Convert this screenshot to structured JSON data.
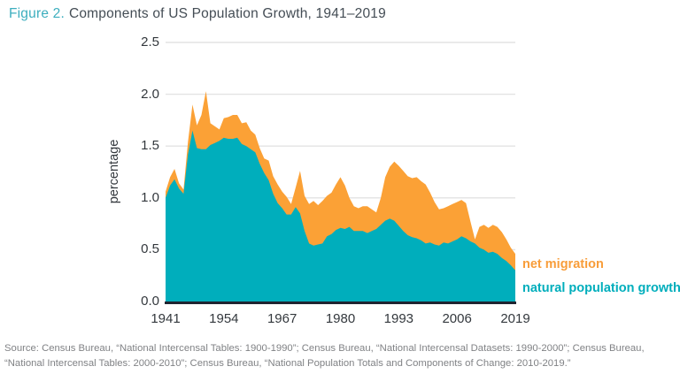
{
  "title": {
    "figure_label": "Figure 2.",
    "text": "Components of US Population Growth, 1941–2019"
  },
  "legend": {
    "migration_label": "net migration",
    "natural_label": "natural population growth"
  },
  "source": {
    "line1": "Source: Census Bureau, “National Intercensal Tables: 1900-1990”; Census Bureau, “National Intercensal Datasets: 1990-2000”; Census Bureau,",
    "line2": "“National Intercensal Tables: 2000-2010”; Census Bureau, “National Population Totals and Components of Change: 2010-2019.”"
  },
  "colors": {
    "natural_area": "#00AEBC",
    "migration_area": "#FBA136",
    "legend_natural_text": "#00AEBC",
    "legend_migration_text": "#F89D3A",
    "title_accent": "#3CAEBE",
    "title_text": "#444D55",
    "grid": "#E3E3E3",
    "baseline": "#1F2430",
    "tick_text": "#33383D",
    "source_text": "#808285"
  },
  "chart_data": {
    "type": "area",
    "stacked": true,
    "title": "Components of US Population Growth, 1941–2019",
    "xlabel": "",
    "ylabel": "percentage",
    "grid": "horizontal gridlines at each y tick",
    "legend_position": "right of plot, stacked vertically",
    "xlim": [
      1941,
      2019
    ],
    "ylim": [
      0,
      2.5
    ],
    "x_ticks": [
      1941,
      1954,
      1967,
      1980,
      1993,
      2006,
      2019
    ],
    "y_tick_labels": [
      "0.0",
      "0.5",
      "1.0",
      "1.5",
      "2.0",
      "2.5"
    ],
    "x": [
      1941,
      1942,
      1943,
      1944,
      1945,
      1946,
      1947,
      1948,
      1949,
      1950,
      1951,
      1952,
      1953,
      1954,
      1955,
      1956,
      1957,
      1958,
      1959,
      1960,
      1961,
      1962,
      1963,
      1964,
      1965,
      1966,
      1967,
      1968,
      1969,
      1970,
      1971,
      1972,
      1973,
      1974,
      1975,
      1976,
      1977,
      1978,
      1979,
      1980,
      1981,
      1982,
      1983,
      1984,
      1985,
      1986,
      1987,
      1988,
      1989,
      1990,
      1991,
      1992,
      1993,
      1994,
      1995,
      1996,
      1997,
      1998,
      1999,
      2000,
      2001,
      2002,
      2003,
      2004,
      2005,
      2006,
      2007,
      2008,
      2009,
      2010,
      2011,
      2012,
      2013,
      2014,
      2015,
      2016,
      2017,
      2018,
      2019
    ],
    "series": [
      {
        "name": "natural population growth",
        "color": "#00AEBC",
        "values": [
          1.0,
          1.12,
          1.18,
          1.09,
          1.04,
          1.42,
          1.65,
          1.48,
          1.47,
          1.47,
          1.51,
          1.53,
          1.55,
          1.58,
          1.57,
          1.57,
          1.58,
          1.52,
          1.5,
          1.47,
          1.44,
          1.33,
          1.24,
          1.17,
          1.04,
          0.95,
          0.9,
          0.84,
          0.84,
          0.91,
          0.85,
          0.68,
          0.56,
          0.54,
          0.55,
          0.56,
          0.63,
          0.65,
          0.69,
          0.71,
          0.7,
          0.72,
          0.68,
          0.68,
          0.68,
          0.66,
          0.68,
          0.7,
          0.74,
          0.78,
          0.8,
          0.78,
          0.73,
          0.68,
          0.64,
          0.62,
          0.61,
          0.59,
          0.56,
          0.57,
          0.55,
          0.54,
          0.57,
          0.56,
          0.58,
          0.6,
          0.63,
          0.61,
          0.58,
          0.56,
          0.52,
          0.5,
          0.47,
          0.48,
          0.46,
          0.42,
          0.39,
          0.35,
          0.3
        ]
      },
      {
        "name": "net migration",
        "color": "#FBA136",
        "values": [
          0.06,
          0.08,
          0.1,
          0.05,
          0.04,
          0.12,
          0.25,
          0.22,
          0.33,
          0.56,
          0.21,
          0.16,
          0.11,
          0.19,
          0.21,
          0.23,
          0.22,
          0.2,
          0.23,
          0.18,
          0.17,
          0.15,
          0.14,
          0.19,
          0.17,
          0.18,
          0.16,
          0.17,
          0.1,
          0.19,
          0.41,
          0.34,
          0.38,
          0.43,
          0.38,
          0.41,
          0.39,
          0.4,
          0.44,
          0.49,
          0.42,
          0.28,
          0.24,
          0.22,
          0.24,
          0.26,
          0.21,
          0.16,
          0.26,
          0.42,
          0.5,
          0.57,
          0.58,
          0.58,
          0.57,
          0.57,
          0.59,
          0.57,
          0.57,
          0.48,
          0.41,
          0.35,
          0.33,
          0.36,
          0.36,
          0.36,
          0.35,
          0.34,
          0.19,
          0.04,
          0.2,
          0.24,
          0.24,
          0.26,
          0.26,
          0.25,
          0.21,
          0.17,
          0.16
        ]
      }
    ]
  }
}
